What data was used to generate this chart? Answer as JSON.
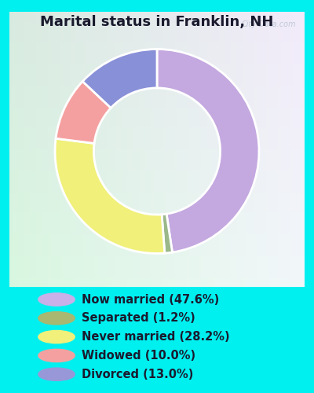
{
  "title": "Marital status in Franklin, NH",
  "title_fontsize": 13,
  "title_color": "#1a1a2e",
  "slices": [
    47.6,
    1.2,
    28.2,
    10.0,
    13.0
  ],
  "labels": [
    "Now married (47.6%)",
    "Separated (1.2%)",
    "Never married (28.2%)",
    "Widowed (10.0%)",
    "Divorced (13.0%)"
  ],
  "pie_colors": [
    "#c4a8e0",
    "#9ab88a",
    "#f0f07a",
    "#f5a0a0",
    "#8890d8"
  ],
  "legend_colors": [
    "#c9b0e8",
    "#a8b870",
    "#f0f07a",
    "#f5a0a0",
    "#9898d8"
  ],
  "bg_cyan": "#00f0f0",
  "chart_bg": "#e0f0e4",
  "watermark": "City-Data.com",
  "donut_width": 0.38,
  "start_angle": 90,
  "legend_fontsize": 10.5
}
